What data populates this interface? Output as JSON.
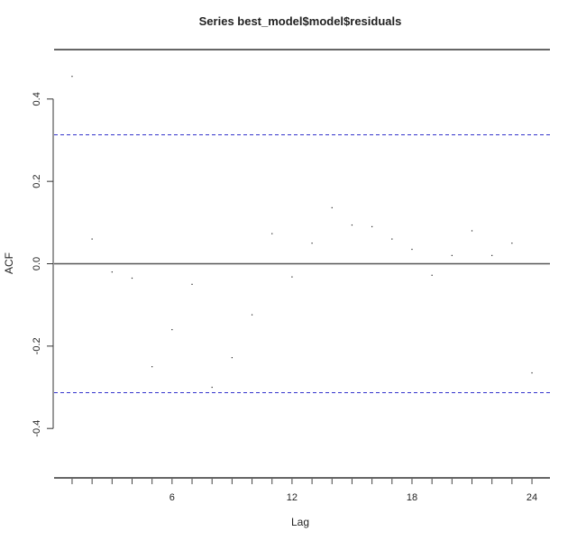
{
  "chart_data": {
    "type": "acf",
    "title": "Series  best_model$model$residuals",
    "xlabel": "Lag",
    "ylabel": "ACF",
    "xlim": [
      0.1,
      24.9
    ],
    "ylim": [
      -0.52,
      0.52
    ],
    "x_ticks": [
      6,
      12,
      18,
      24
    ],
    "y_ticks": [
      -0.4,
      -0.2,
      0.0,
      0.2,
      0.4
    ],
    "y_tick_labels": [
      "-0.4",
      "-0.2",
      "0.0",
      "0.2",
      "0.4"
    ],
    "confidence_limit": 0.313,
    "ci_color": "#3333cc",
    "lags": [
      1,
      2,
      3,
      4,
      5,
      6,
      7,
      8,
      9,
      10,
      11,
      12,
      13,
      14,
      15,
      16,
      17,
      18,
      19,
      20,
      21,
      22,
      23,
      24
    ],
    "values": [
      0.455,
      0.06,
      -0.02,
      -0.035,
      -0.25,
      -0.16,
      -0.05,
      -0.3,
      -0.228,
      -0.124,
      0.073,
      -0.032,
      0.05,
      0.136,
      0.094,
      0.09,
      0.06,
      0.035,
      -0.028,
      0.02,
      0.08,
      0.02,
      0.05,
      -0.265
    ],
    "grid": false
  }
}
